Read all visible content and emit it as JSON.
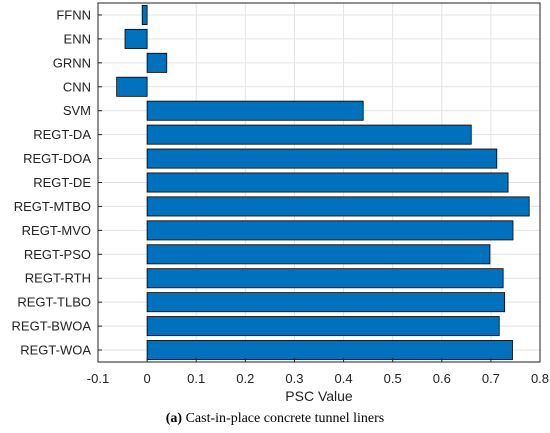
{
  "chart_data": {
    "type": "bar",
    "orientation": "horizontal",
    "categories": [
      "FFNN",
      "ENN",
      "GRNN",
      "CNN",
      "SVM",
      "REGT-DA",
      "REGT-DOA",
      "REGT-DE",
      "REGT-MTBO",
      "REGT-MVO",
      "REGT-PSO",
      "REGT-RTH",
      "REGT-TLBO",
      "REGT-BWOA",
      "REGT-WOA"
    ],
    "values": [
      -0.01,
      -0.045,
      0.04,
      -0.062,
      0.44,
      0.66,
      0.712,
      0.735,
      0.778,
      0.745,
      0.698,
      0.725,
      0.728,
      0.717,
      0.744
    ],
    "xlabel": "PSC Value",
    "ylabel": "",
    "xlim": [
      -0.1,
      0.8
    ],
    "xticks": [
      -0.1,
      0,
      0.1,
      0.2,
      0.3,
      0.4,
      0.5,
      0.6,
      0.7,
      0.8
    ],
    "xtick_labels": [
      "-0.1",
      "0",
      "0.1",
      "0.2",
      "0.3",
      "0.4",
      "0.5",
      "0.6",
      "0.7",
      "0.8"
    ],
    "grid": true,
    "bar_color": "#0072BD",
    "bar_edge_color": "#000000"
  },
  "caption": {
    "label": "(a)",
    "text": "Cast-in-place concrete tunnel liners"
  }
}
